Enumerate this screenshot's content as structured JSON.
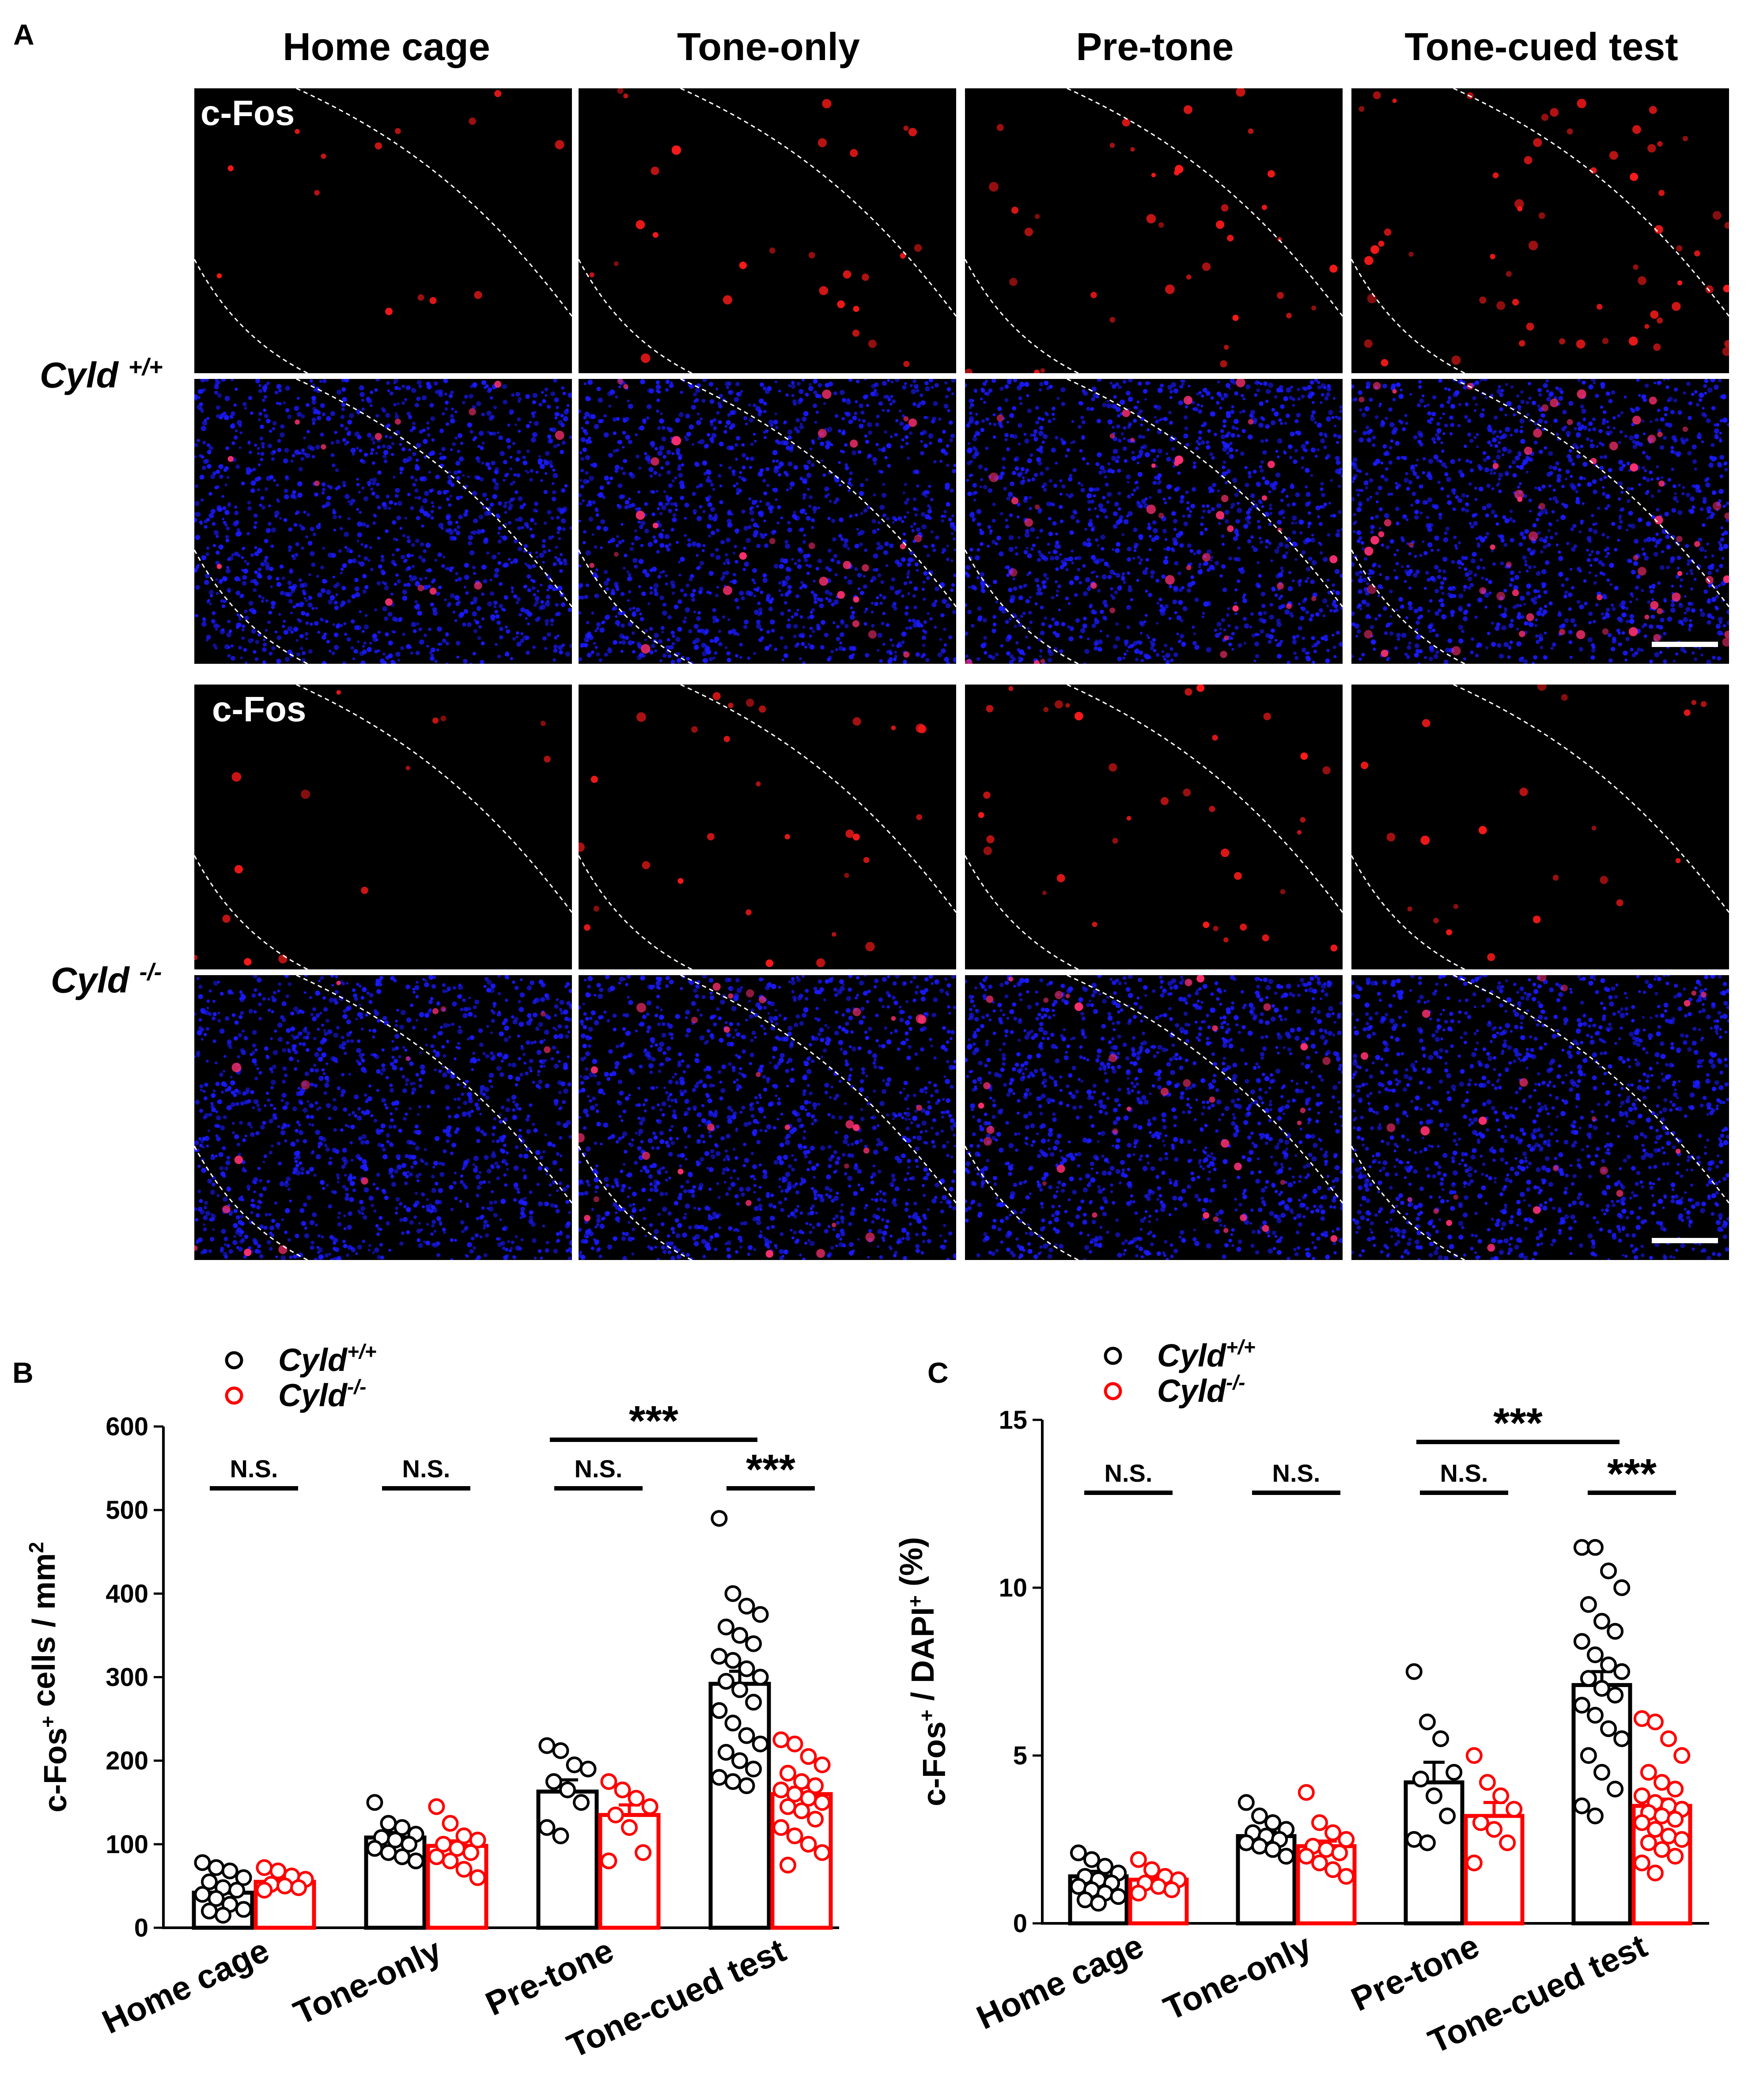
{
  "panel_labels": {
    "a": "A",
    "b": "B",
    "c": "C"
  },
  "micrograph": {
    "columns": [
      "Home cage",
      "Tone-only",
      "Pre-tone",
      "Tone-cued test"
    ],
    "rows": [
      {
        "genotype_text": "Cyld ",
        "genotype_sup": "+/+"
      },
      {
        "genotype_text": "Cyld ",
        "genotype_sup": "-/-"
      }
    ],
    "stain_label": "c-Fos",
    "colors": {
      "cfos": "#ff1a1a",
      "dapi": "#1a1aff",
      "background": "#000000",
      "outline": "#ffffff"
    }
  },
  "chart_data": [
    {
      "type": "bar",
      "panel": "B",
      "ylabel_main": "c-Fos",
      "ylabel_sup1": "+",
      "ylabel_mid": " cells / mm",
      "ylabel_sup2": "2",
      "xlabel": "",
      "ylim": [
        0,
        600
      ],
      "yticks": [
        "0",
        "100",
        "200",
        "300",
        "400",
        "500",
        "600"
      ],
      "categories": [
        "Home cage",
        "Tone-only",
        "Pre-tone",
        "Tone-cued test"
      ],
      "series": [
        {
          "name": "Cyld",
          "name_sup": "+/+",
          "color": "#000000",
          "values": [
            42,
            108,
            163,
            292
          ],
          "sem": [
            7,
            6,
            14,
            15
          ],
          "points": [
            [
              78,
              72,
              68,
              60,
              55,
              48,
              45,
              40,
              35,
              28,
              22,
              20,
              15
            ],
            [
              150,
              125,
              120,
              112,
              108,
              105,
              100,
              95,
              90,
              85,
              80
            ],
            [
              218,
              212,
              195,
              190,
              175,
              165,
              150,
              120,
              110
            ],
            [
              490,
              400,
              385,
              375,
              360,
              350,
              340,
              325,
              320,
              310,
              300,
              295,
              285,
              270,
              260,
              245,
              230,
              220,
              210,
              200,
              190,
              180,
              175,
              170
            ]
          ]
        },
        {
          "name": "Cyld",
          "name_sup": "-/-",
          "color": "#ff0000",
          "values": [
            55,
            98,
            135,
            160
          ],
          "sem": [
            4,
            6,
            12,
            8
          ],
          "points": [
            [
              72,
              68,
              62,
              58,
              52,
              50,
              48,
              45
            ],
            [
              145,
              125,
              110,
              105,
              100,
              95,
              90,
              85,
              80,
              70,
              60
            ],
            [
              175,
              165,
              155,
              145,
              135,
              120,
              90,
              80
            ],
            [
              225,
              220,
              205,
              195,
              185,
              175,
              170,
              165,
              160,
              155,
              150,
              145,
              140,
              130,
              120,
              110,
              100,
              90,
              75
            ]
          ]
        }
      ],
      "significance": [
        {
          "label": "N.S.",
          "compare": "Home cage"
        },
        {
          "label": "N.S.",
          "compare": "Tone-only"
        },
        {
          "label": "N.S.",
          "compare": "Pre-tone"
        },
        {
          "label": "***",
          "compare": "Pre-tone vs Tone-cued test (Cyld+/+)"
        },
        {
          "label": "***",
          "compare": "Tone-cued test"
        }
      ]
    },
    {
      "type": "bar",
      "panel": "C",
      "ylabel_main": "c-Fos",
      "ylabel_sup1": "+",
      "ylabel_mid": " / DAPI",
      "ylabel_sup2": "+",
      "ylabel_end": " (%)",
      "xlabel": "",
      "ylim": [
        0,
        15
      ],
      "yticks": [
        "0",
        "5",
        "10",
        "15"
      ],
      "categories": [
        "Home cage",
        "Tone-only",
        "Pre-tone",
        "Tone-cued test"
      ],
      "series": [
        {
          "name": "Cyld",
          "name_sup": "+/+",
          "color": "#000000",
          "values": [
            1.4,
            2.6,
            4.2,
            7.1
          ],
          "sem": [
            0.15,
            0.12,
            0.6,
            0.4
          ],
          "points": [
            [
              2.1,
              1.9,
              1.7,
              1.5,
              1.4,
              1.3,
              1.2,
              1.1,
              1.0,
              0.9,
              0.8,
              0.7,
              0.6
            ],
            [
              3.6,
              3.2,
              3.0,
              2.8,
              2.7,
              2.6,
              2.5,
              2.4,
              2.3,
              2.2,
              2.0
            ],
            [
              7.5,
              6.0,
              5.5,
              4.5,
              4.3,
              3.8,
              3.2,
              2.5,
              2.4
            ],
            [
              11.2,
              11.2,
              10.5,
              10.0,
              9.5,
              9.0,
              8.7,
              8.4,
              8.0,
              7.7,
              7.5,
              7.3,
              7.0,
              6.8,
              6.5,
              6.2,
              5.8,
              5.5,
              5.0,
              4.5,
              4.0,
              3.5,
              3.2
            ]
          ]
        },
        {
          "name": "Cyld",
          "name_sup": "-/-",
          "color": "#ff0000",
          "values": [
            1.3,
            2.3,
            3.2,
            3.5
          ],
          "sem": [
            0.1,
            0.15,
            0.4,
            0.2
          ],
          "points": [
            [
              1.9,
              1.6,
              1.4,
              1.3,
              1.2,
              1.1,
              1.0,
              0.9
            ],
            [
              3.9,
              3.0,
              2.7,
              2.5,
              2.3,
              2.2,
              2.1,
              2.0,
              1.8,
              1.6,
              1.4
            ],
            [
              5.0,
              4.2,
              3.8,
              3.4,
              3.0,
              2.8,
              2.4,
              1.8
            ],
            [
              6.1,
              6.0,
              5.5,
              5.0,
              4.5,
              4.2,
              4.0,
              3.8,
              3.6,
              3.5,
              3.4,
              3.3,
              3.2,
              3.1,
              3.0,
              2.8,
              2.6,
              2.5,
              2.4,
              2.2,
              2.0,
              1.8,
              1.5
            ]
          ]
        }
      ],
      "significance": [
        {
          "label": "N.S.",
          "compare": "Home cage"
        },
        {
          "label": "N.S.",
          "compare": "Tone-only"
        },
        {
          "label": "N.S.",
          "compare": "Pre-tone"
        },
        {
          "label": "***",
          "compare": "Pre-tone vs Tone-cued test (Cyld+/+)"
        },
        {
          "label": "***",
          "compare": "Tone-cued test"
        }
      ]
    }
  ]
}
